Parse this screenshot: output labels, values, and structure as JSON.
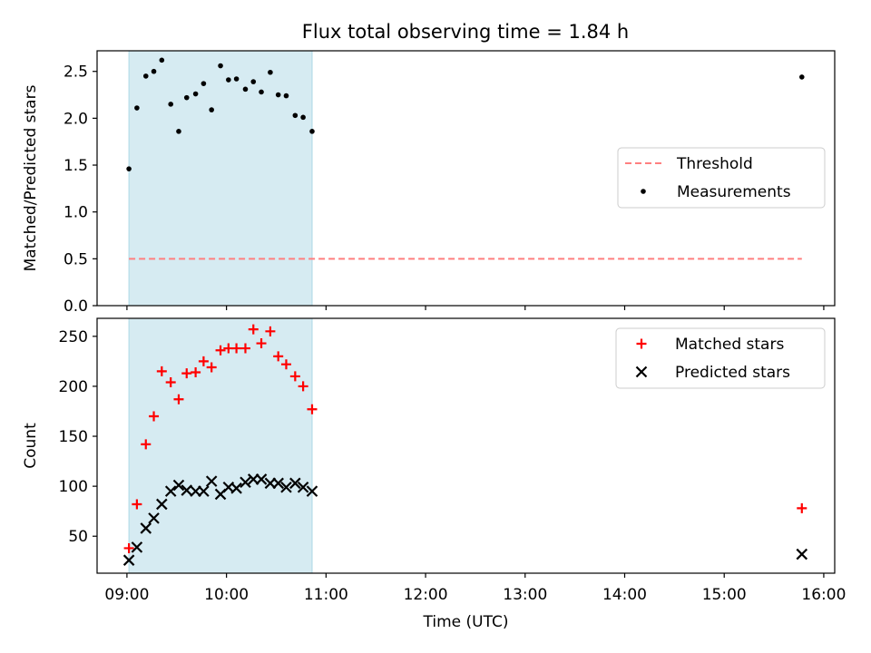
{
  "figure": {
    "title": "Flux total observing time = 1.84 h"
  },
  "chart_data": [
    {
      "type": "scatter",
      "title": "Flux total observing time = 1.84 h",
      "xlabel": "",
      "ylabel": "Matched/Predicted stars",
      "xlim": [
        8.7,
        16.11
      ],
      "ylim": [
        0.0,
        2.72
      ],
      "x_ticks": [
        9,
        10,
        11,
        12,
        13,
        14,
        15,
        16
      ],
      "x_tick_labels_visible": false,
      "y_ticks": [
        0.0,
        0.5,
        1.0,
        1.5,
        2.0,
        2.5
      ],
      "y_tick_labels": [
        "0.0",
        "0.5",
        "1.0",
        "1.5",
        "2.0",
        "2.5"
      ],
      "shaded_span": {
        "x0": 9.02,
        "x1": 10.86,
        "color": "#add8e6"
      },
      "legend": {
        "placement": "center-right",
        "entries": [
          "Threshold",
          "Measurements"
        ]
      },
      "series": [
        {
          "name": "Threshold",
          "kind": "dashed-line",
          "color": "#ff7f7f",
          "x": [
            9.02,
            15.78
          ],
          "y": [
            0.5,
            0.5
          ]
        },
        {
          "name": "Measurements",
          "kind": "dot",
          "color": "#000000",
          "x": [
            9.02,
            9.1,
            9.19,
            9.27,
            9.35,
            9.44,
            9.52,
            9.6,
            9.69,
            9.77,
            9.85,
            9.94,
            10.02,
            10.1,
            10.19,
            10.27,
            10.35,
            10.44,
            10.52,
            10.6,
            10.69,
            10.77,
            10.86,
            15.78
          ],
          "y": [
            1.46,
            2.11,
            2.45,
            2.5,
            2.62,
            2.15,
            1.86,
            2.22,
            2.26,
            2.37,
            2.09,
            2.56,
            2.41,
            2.42,
            2.31,
            2.39,
            2.28,
            2.49,
            2.25,
            2.24,
            2.03,
            2.01,
            1.86,
            2.44
          ]
        }
      ]
    },
    {
      "type": "scatter",
      "xlabel": "Time (UTC)",
      "ylabel": "Count",
      "xlim": [
        8.7,
        16.11
      ],
      "ylim": [
        13,
        268
      ],
      "x_ticks": [
        9,
        10,
        11,
        12,
        13,
        14,
        15,
        16
      ],
      "x_tick_labels": [
        "09:00",
        "10:00",
        "11:00",
        "12:00",
        "13:00",
        "14:00",
        "15:00",
        "16:00"
      ],
      "y_ticks": [
        50,
        100,
        150,
        200,
        250
      ],
      "y_tick_labels": [
        "50",
        "100",
        "150",
        "200",
        "250"
      ],
      "shaded_span": {
        "x0": 9.02,
        "x1": 10.86,
        "color": "#add8e6"
      },
      "legend": {
        "placement": "top-right",
        "entries": [
          "Matched stars",
          "Predicted stars"
        ]
      },
      "series": [
        {
          "name": "Matched stars",
          "kind": "plus",
          "color": "#ff0000",
          "x": [
            9.02,
            9.1,
            9.19,
            9.27,
            9.35,
            9.44,
            9.52,
            9.6,
            9.69,
            9.77,
            9.85,
            9.94,
            10.02,
            10.1,
            10.19,
            10.27,
            10.35,
            10.44,
            10.52,
            10.6,
            10.69,
            10.77,
            10.86,
            15.78
          ],
          "y": [
            38,
            82,
            142,
            170,
            215,
            204,
            187,
            213,
            214,
            225,
            219,
            236,
            238,
            238,
            238,
            257,
            243,
            255,
            230,
            222,
            210,
            200,
            177,
            78
          ]
        },
        {
          "name": "Predicted stars",
          "kind": "x",
          "color": "#000000",
          "x": [
            9.02,
            9.1,
            9.19,
            9.27,
            9.35,
            9.44,
            9.52,
            9.6,
            9.69,
            9.77,
            9.85,
            9.94,
            10.02,
            10.1,
            10.19,
            10.27,
            10.35,
            10.44,
            10.52,
            10.6,
            10.69,
            10.77,
            10.86,
            15.78
          ],
          "y": [
            26,
            39,
            58,
            68,
            82,
            95,
            101,
            96,
            95,
            95,
            105,
            92,
            99,
            98,
            104,
            107,
            107,
            103,
            103,
            99,
            103,
            99,
            95,
            32
          ]
        }
      ]
    }
  ]
}
